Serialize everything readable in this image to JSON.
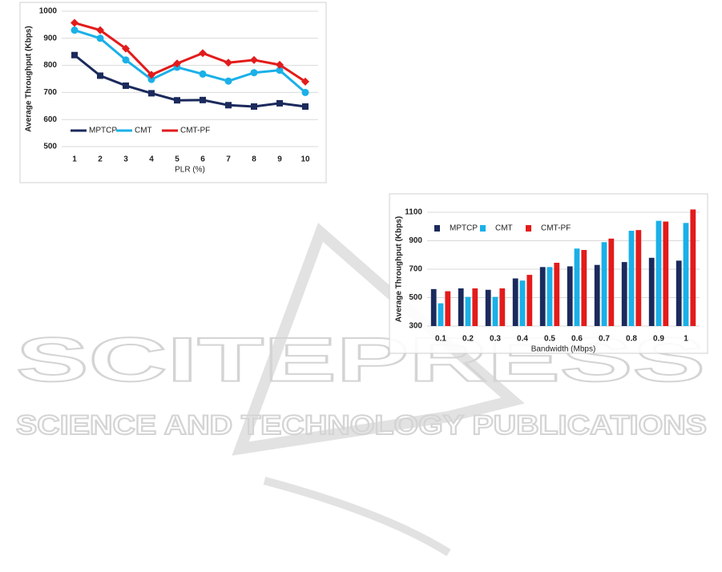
{
  "chart_data": [
    {
      "type": "line",
      "xlabel": "PLR (%)",
      "ylabel": "Average Throughput (Kbps)",
      "categories": [
        "1",
        "2",
        "3",
        "4",
        "5",
        "6",
        "7",
        "8",
        "9",
        "10"
      ],
      "series": [
        {
          "name": "MPTCP",
          "color": "#1b2a5c",
          "marker": "square",
          "values": [
            838,
            762,
            725,
            697,
            671,
            672,
            653,
            648,
            660,
            648
          ]
        },
        {
          "name": "CMT",
          "color": "#1ab0e8",
          "marker": "circle",
          "values": [
            930,
            900,
            820,
            748,
            793,
            768,
            742,
            773,
            782,
            700
          ]
        },
        {
          "name": "CMT-PF",
          "color": "#e31b1b",
          "marker": "diamond",
          "values": [
            957,
            930,
            862,
            765,
            807,
            845,
            810,
            820,
            802,
            740
          ]
        }
      ],
      "ylim": [
        500,
        1000
      ],
      "yticks": [
        500,
        600,
        700,
        800,
        900,
        1000
      ],
      "grid": true,
      "legend": "bottom-left"
    },
    {
      "type": "bar",
      "xlabel": "Bandwidth (Mbps)",
      "ylabel": "Average Throughput (Kbps)",
      "categories": [
        "0.1",
        "0.2",
        "0.3",
        "0.4",
        "0.5",
        "0.6",
        "0.7",
        "0.8",
        "0.9",
        "1"
      ],
      "series": [
        {
          "name": "MPTCP",
          "color": "#1b2a5c",
          "values": [
            560,
            565,
            555,
            635,
            715,
            720,
            730,
            750,
            780,
            760
          ]
        },
        {
          "name": "CMT",
          "color": "#1ab0e8",
          "values": [
            460,
            505,
            505,
            620,
            715,
            845,
            890,
            970,
            1040,
            1025
          ]
        },
        {
          "name": "CMT-PF",
          "color": "#e31b1b",
          "values": [
            545,
            565,
            565,
            660,
            745,
            835,
            915,
            975,
            1035,
            1120
          ]
        }
      ],
      "ylim": [
        300,
        1100
      ],
      "yticks": [
        300,
        500,
        700,
        900,
        1100
      ],
      "grid": true,
      "legend": "top-left"
    }
  ],
  "watermark": {
    "name": "SCITEPRESS",
    "tagline": "SCIENCE AND TECHNOLOGY PUBLICATIONS"
  }
}
